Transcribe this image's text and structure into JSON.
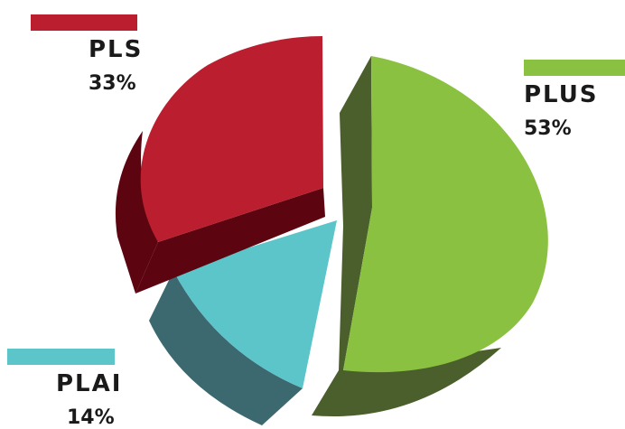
{
  "chart_data": {
    "type": "pie",
    "title": "",
    "slices": [
      {
        "label": "PLUS",
        "value": 53,
        "value_label": "53%",
        "color": "#8bc141",
        "side_color": "#4a5f2c"
      },
      {
        "label": "PLAI",
        "value": 14,
        "value_label": "14%",
        "color": "#5bc5ca",
        "side_color": "#3c6970"
      },
      {
        "label": "PLS",
        "value": 33,
        "value_label": "33%",
        "color": "#bb1f2f",
        "side_color": "#5c0511"
      }
    ],
    "exploded": true,
    "three_d": true
  }
}
